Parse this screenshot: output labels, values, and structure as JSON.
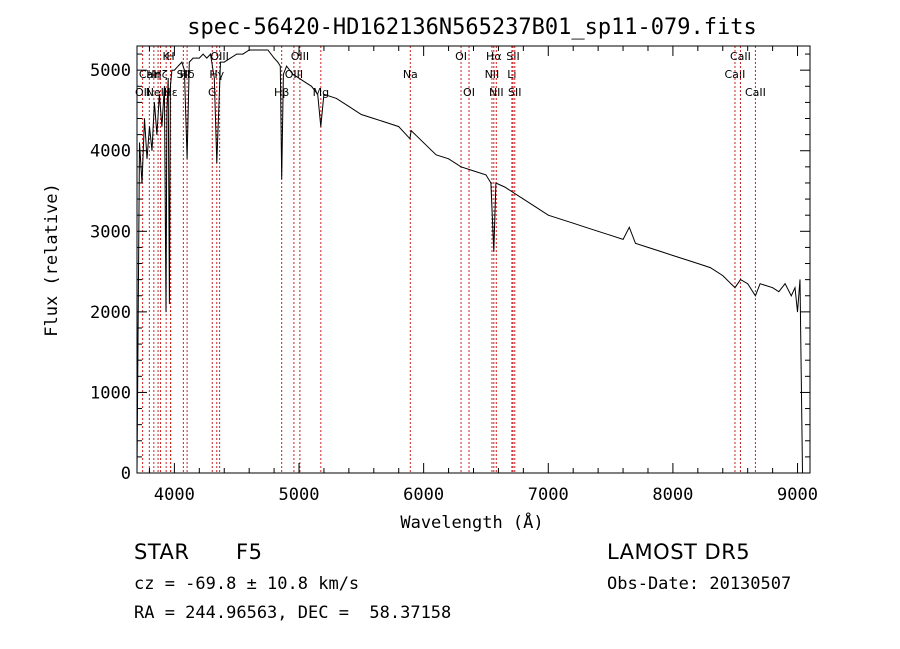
{
  "chart_data": {
    "type": "line",
    "title": "spec-56420-HD162136N565237B01_sp11-079.fits",
    "xlabel": "Wavelength (Å)",
    "ylabel": "Flux (relative)",
    "xlim": [
      3700,
      9100
    ],
    "ylim": [
      0,
      5300
    ],
    "x_ticks": [
      4000,
      5000,
      6000,
      7000,
      8000,
      9000
    ],
    "y_ticks": [
      0,
      1000,
      2000,
      3000,
      4000,
      5000
    ],
    "grid": false,
    "series": [
      {
        "x": [
          3700,
          3720,
          3740,
          3760,
          3780,
          3800,
          3820,
          3840,
          3860,
          3880,
          3900,
          3920,
          3933,
          3940,
          3950,
          3960,
          3968,
          3980,
          4000,
          4030,
          4060,
          4080,
          4102,
          4120,
          4150,
          4180,
          4200,
          4230,
          4260,
          4290,
          4320,
          4340,
          4370,
          4400,
          4450,
          4500,
          4550,
          4600,
          4650,
          4700,
          4750,
          4800,
          4830,
          4850,
          4861,
          4875,
          4900,
          4950,
          5000,
          5050,
          5100,
          5150,
          5175,
          5200,
          5300,
          5400,
          5500,
          5600,
          5700,
          5800,
          5890,
          5900,
          6000,
          6100,
          6200,
          6300,
          6400,
          6500,
          6540,
          6563,
          6580,
          6650,
          6700,
          6800,
          6900,
          7000,
          7100,
          7200,
          7300,
          7400,
          7500,
          7600,
          7650,
          7700,
          7800,
          7900,
          8000,
          8100,
          8200,
          8300,
          8400,
          8498,
          8542,
          8600,
          8662,
          8700,
          8800,
          8850,
          8900,
          8950,
          8980,
          9000,
          9020,
          9040,
          9060
        ],
        "y": [
          0,
          4100,
          3600,
          4400,
          3900,
          4300,
          4000,
          4600,
          4200,
          4700,
          4300,
          4800,
          2000,
          4500,
          4900,
          2100,
          4800,
          5000,
          5000,
          5050,
          5100,
          5000,
          3900,
          5100,
          5150,
          5150,
          5150,
          5200,
          5150,
          5200,
          4900,
          3850,
          5100,
          5100,
          5150,
          5200,
          5200,
          5250,
          5250,
          5250,
          5250,
          5150,
          5100,
          5050,
          3650,
          4950,
          5050,
          4950,
          4900,
          4850,
          4800,
          4700,
          4300,
          4700,
          4650,
          4550,
          4450,
          4400,
          4350,
          4300,
          4150,
          4250,
          4100,
          3950,
          3900,
          3800,
          3750,
          3700,
          3600,
          2750,
          3600,
          3550,
          3500,
          3400,
          3300,
          3200,
          3150,
          3100,
          3050,
          3000,
          2950,
          2900,
          3050,
          2850,
          2800,
          2750,
          2700,
          2650,
          2600,
          2550,
          2450,
          2300,
          2400,
          2350,
          2200,
          2350,
          2300,
          2250,
          2350,
          2200,
          2300,
          2000,
          2400,
          0,
          0
        ]
      }
    ],
    "line_markers": [
      {
        "x": 3934,
        "label": "K",
        "row": 0
      },
      {
        "x": 3969,
        "label": "H",
        "row": 0
      },
      {
        "x": 3799,
        "label": "CaII",
        "row": 1
      },
      {
        "x": 3835,
        "label": "Hη",
        "row": 1
      },
      {
        "x": 3889,
        "label": "Hζ",
        "row": 1
      },
      {
        "x": 3970,
        "label": "Hε",
        "row": 2
      },
      {
        "x": 4102,
        "label": "Hδ",
        "row": 1
      },
      {
        "x": 4072,
        "label": "SII",
        "row": 1
      },
      {
        "x": 3745,
        "label": "OII",
        "row": 2
      },
      {
        "x": 3869,
        "label": "NeIII",
        "row": 2
      },
      {
        "x": 4304,
        "label": "G",
        "row": 2
      },
      {
        "x": 4340,
        "label": "Hγ",
        "row": 1
      },
      {
        "x": 4363,
        "label": "OIII",
        "row": 0
      },
      {
        "x": 4861,
        "label": "Hβ",
        "row": 2
      },
      {
        "x": 4959,
        "label": "OIII",
        "row": 1
      },
      {
        "x": 5007,
        "label": "OIII",
        "row": 0
      },
      {
        "x": 5175,
        "label": "Mg",
        "row": 2
      },
      {
        "x": 5893,
        "label": "Na",
        "row": 1
      },
      {
        "x": 6300,
        "label": "OI",
        "row": 0
      },
      {
        "x": 6364,
        "label": "OI",
        "row": 2
      },
      {
        "x": 6548,
        "label": "NII",
        "row": 1
      },
      {
        "x": 6563,
        "label": "Hα",
        "row": 0
      },
      {
        "x": 6583,
        "label": "NII",
        "row": 2
      },
      {
        "x": 6708,
        "label": "Li",
        "row": 1
      },
      {
        "x": 6717,
        "label": "SII",
        "row": 0
      },
      {
        "x": 6731,
        "label": "SII",
        "row": 2
      },
      {
        "x": 8498,
        "label": "CaII",
        "row": 1
      },
      {
        "x": 8542,
        "label": "CaII",
        "row": 0
      },
      {
        "x": 8662,
        "label": "CaII",
        "row": 2
      }
    ],
    "colors": {
      "line": "#000000",
      "markers": "#cc2222",
      "axes": "#000000"
    }
  },
  "info": {
    "object_class": "STAR",
    "subclass": "F5",
    "survey": "LAMOST DR5",
    "velocity": "cz = -69.8 ± 10.8 km/s",
    "obs_date": "Obs-Date: 20130507",
    "coords": "RA = 244.96563, DEC =  58.37158"
  }
}
